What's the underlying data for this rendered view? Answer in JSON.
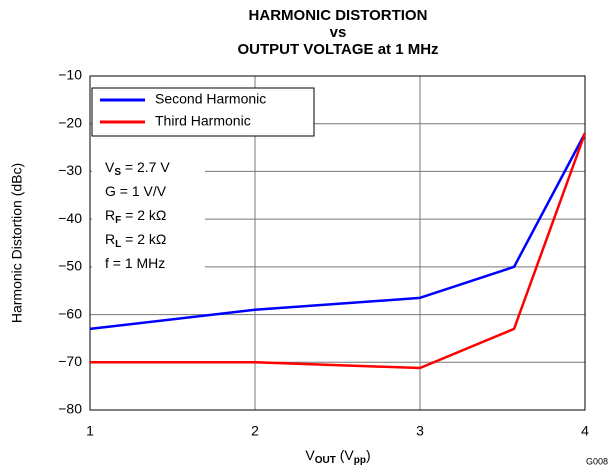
{
  "chart_data": {
    "type": "line",
    "title": [
      "HARMONIC DISTORTION",
      "vs",
      "OUTPUT VOLTAGE at 1 MHz"
    ],
    "y_label": "Harmonic Distortion (dBc)",
    "x_label": [
      {
        "text": "V"
      },
      {
        "text": "OUT",
        "sub": true
      },
      {
        "text": " (V"
      },
      {
        "text": "pp",
        "sub": true
      },
      {
        "text": ")"
      }
    ],
    "corner_label": "G008",
    "x": [
      1,
      2,
      3,
      3.57,
      4
    ],
    "series": [
      {
        "name": "Second Harmonic",
        "color": "#0000ff",
        "values": [
          -63,
          -59,
          -56.5,
          -50,
          -22
        ]
      },
      {
        "name": "Third Harmonic",
        "color": "#ff0000",
        "values": [
          -70,
          -70,
          -71.2,
          -63,
          -22
        ]
      }
    ],
    "annotation": [
      [
        {
          "text": "V"
        },
        {
          "text": "S",
          "sub": true
        },
        {
          "text": " = 2.7 V"
        }
      ],
      [
        {
          "text": "G = 1 V/V"
        }
      ],
      [
        {
          "text": "R"
        },
        {
          "text": "F",
          "sub": true
        },
        {
          "text": " = 2 kΩ"
        }
      ],
      [
        {
          "text": "R"
        },
        {
          "text": "L",
          "sub": true
        },
        {
          "text": " = 2 kΩ"
        }
      ],
      [
        {
          "text": "f = 1 MHz"
        }
      ]
    ],
    "xlim": [
      1,
      4
    ],
    "xticks": [
      1,
      2,
      3,
      4
    ],
    "ylim": [
      -80,
      -10
    ],
    "yticks": [
      {
        "value": -80,
        "label": "−80"
      },
      {
        "value": -70,
        "label": "−70"
      },
      {
        "value": -60,
        "label": "−60"
      },
      {
        "value": -50,
        "label": "−50"
      },
      {
        "value": -40,
        "label": "−40"
      },
      {
        "value": -30,
        "label": "−30"
      },
      {
        "value": -20,
        "label": "−20"
      },
      {
        "value": -10,
        "label": "−10"
      }
    ],
    "grid": true,
    "legend": "upper-left"
  }
}
